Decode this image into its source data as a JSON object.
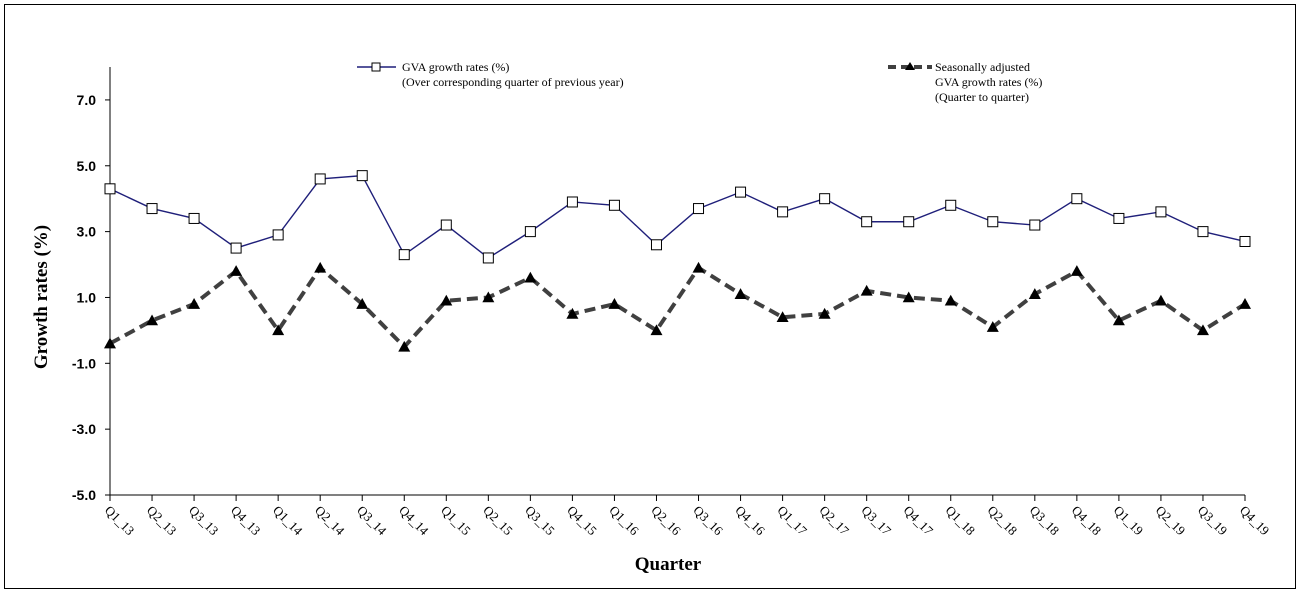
{
  "chart_data": {
    "type": "line",
    "xlabel": "Quarter",
    "ylabel": "Growth rates (%)",
    "ylim": [
      -5.0,
      8.0
    ],
    "yticks": [
      "7.0",
      "5.0",
      "3.0",
      "1.0",
      "-1.0",
      "-3.0",
      "-5.0"
    ],
    "ytick_values": [
      7,
      5,
      3,
      1,
      -1,
      -3,
      -5
    ],
    "categories": [
      "Q1_13",
      "Q2_13",
      "Q3_13",
      "Q4_13",
      "Q1_14",
      "Q2_14",
      "Q3_14",
      "Q4_14",
      "Q1_15",
      "Q2_15",
      "Q3_15",
      "Q4_15",
      "Q1_16",
      "Q2_16",
      "Q3_16",
      "Q4_16",
      "Q1_17",
      "Q2_17",
      "Q3_17",
      "Q4_17",
      "Q1_18",
      "Q2_18",
      "Q3_18",
      "Q4_18",
      "Q1_19",
      "Q2_19",
      "Q3_19",
      "Q4_19"
    ],
    "grid": false,
    "legend_position": "top",
    "series": [
      {
        "legend_lines": [
          "GVA growth rates (%)",
          "(Over corresponding quarter of previous year)"
        ],
        "color": "#1f1f7a",
        "marker": "square",
        "line_style": "solid",
        "values": [
          4.3,
          3.7,
          3.4,
          2.5,
          2.9,
          4.6,
          4.7,
          2.3,
          3.2,
          2.2,
          3.0,
          3.9,
          3.8,
          2.6,
          3.7,
          4.2,
          3.6,
          4.0,
          3.3,
          3.3,
          3.8,
          3.3,
          3.2,
          4.0,
          3.4,
          3.6,
          3.0,
          2.7
        ]
      },
      {
        "legend_lines": [
          "Seasonally adjusted",
          "GVA growth rates (%)",
          "(Quarter to quarter)"
        ],
        "color": "#404040",
        "marker": "triangle",
        "line_style": "dashed",
        "values": [
          -0.4,
          0.3,
          0.8,
          1.8,
          0.0,
          1.9,
          0.8,
          -0.5,
          0.9,
          1.0,
          1.6,
          0.5,
          0.8,
          0.0,
          1.9,
          1.1,
          0.4,
          0.5,
          1.2,
          1.0,
          0.9,
          0.1,
          1.1,
          1.8,
          0.3,
          0.9,
          0.0,
          0.8
        ]
      }
    ]
  }
}
